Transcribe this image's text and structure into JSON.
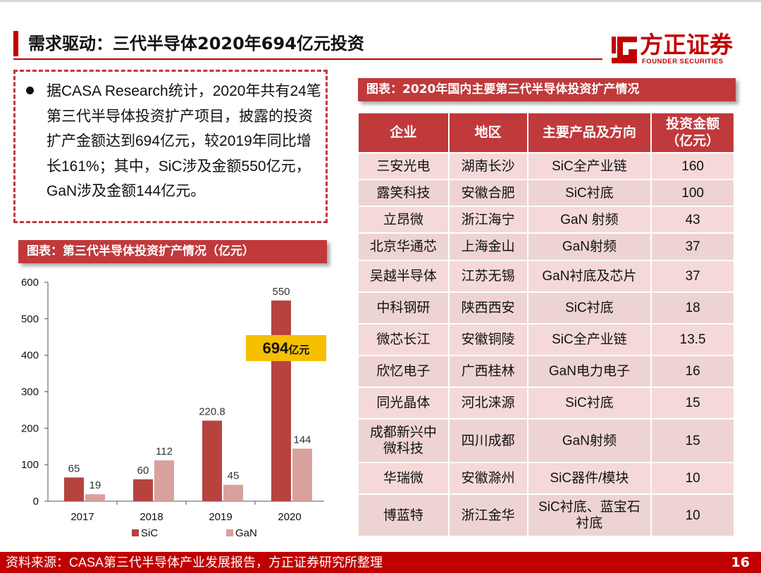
{
  "header": {
    "title": "需求驱动：三代半导体2020年694亿元投资",
    "logo_cn": "方正证券",
    "logo_en": "FOUNDER SECURITIES"
  },
  "note": {
    "text": "据CASA Research统计，2020年共有24笔第三代半导体投资扩产项目，披露的投资扩产金额达到694亿元，较2019年同比增长161%；其中，SiC涉及金额550亿元，GaN涉及金额144亿元。"
  },
  "chart_section": {
    "label": "图表：第三代半导体投资扩产情况（亿元）",
    "callout_number": "694",
    "callout_unit": "亿元"
  },
  "chart_data": {
    "type": "bar",
    "categories": [
      "2017",
      "2018",
      "2019",
      "2020"
    ],
    "series": [
      {
        "name": "SiC",
        "values": [
          65,
          60,
          220.8,
          550
        ],
        "labels": [
          "65",
          "60",
          "220.8",
          "550"
        ]
      },
      {
        "name": "GaN",
        "values": [
          19,
          112,
          45,
          144
        ],
        "labels": [
          "19",
          "112",
          "45",
          "144"
        ]
      }
    ],
    "ylim": [
      0,
      600
    ],
    "yticks": [
      0,
      100,
      200,
      300,
      400,
      500,
      600
    ],
    "legend_position": "bottom",
    "grid": false
  },
  "colors": {
    "sic": "#b7433f",
    "gan": "#d9a19e",
    "accent": "#c0393b",
    "callout": "#f5c000"
  },
  "table_section": {
    "label": "图表：2020年国内主要第三代半导体投资扩产情况",
    "headers": [
      "企业",
      "地区",
      "主要产品及方向",
      "投资金额（亿元）"
    ],
    "rows": [
      [
        "三安光电",
        "湖南长沙",
        "SiC全产业链",
        "160"
      ],
      [
        "露笑科技",
        "安徽合肥",
        "SiC衬底",
        "100"
      ],
      [
        "立昂微",
        "浙江海宁",
        "GaN 射频",
        "43"
      ],
      [
        "北京华通芯",
        "上海金山",
        "GaN射频",
        "37"
      ],
      [
        "吴越半导体",
        "江苏无锡",
        "GaN衬底及芯片",
        "37"
      ],
      [
        "中科钢研",
        "陕西西安",
        "SiC衬底",
        "18"
      ],
      [
        "微芯长江",
        "安徽铜陵",
        "SiC全产业链",
        "13.5"
      ],
      [
        "欣忆电子",
        "广西桂林",
        "GaN电力电子",
        "16"
      ],
      [
        "同光晶体",
        "河北涞源",
        "SiC衬底",
        "15"
      ],
      [
        "成都新兴中微科技",
        "四川成都",
        "GaN射频",
        "15"
      ],
      [
        "华瑞微",
        "安徽滁州",
        "SiC器件/模块",
        "10"
      ],
      [
        "博蓝特",
        "浙江金华",
        "SiC衬底、蓝宝石衬底",
        "10"
      ]
    ]
  },
  "footer": {
    "source": "资料来源：CASA第三代半导体产业发展报告，方正证券研究所整理",
    "page": "16"
  }
}
